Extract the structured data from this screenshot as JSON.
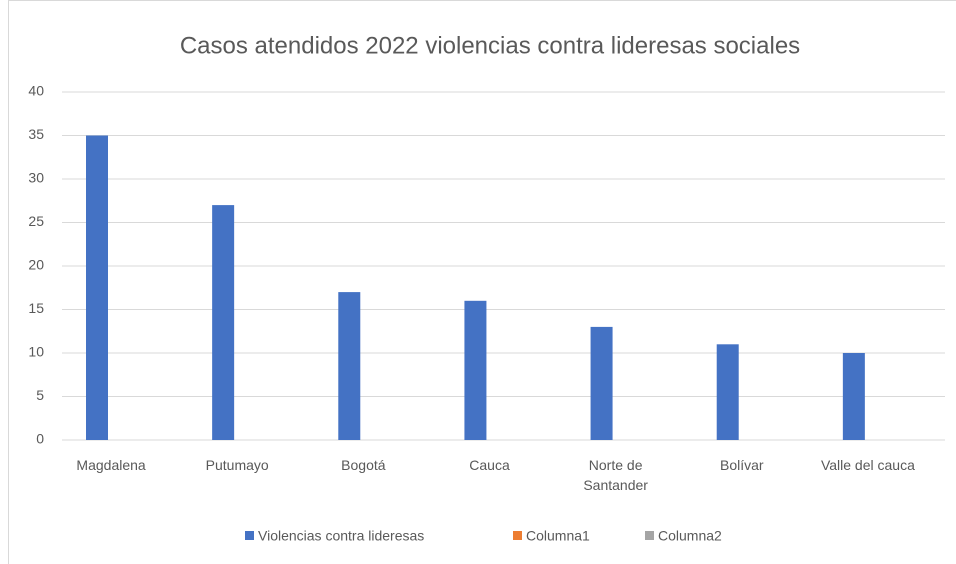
{
  "chart_data": {
    "type": "bar",
    "title": "Casos atendidos 2022 violencias contra lideresas sociales",
    "categories": [
      "Magdalena",
      "Putumayo",
      "Bogotá",
      "Cauca",
      "Norte de Santander",
      "Bolívar",
      "Valle del cauca"
    ],
    "series": [
      {
        "name": "Violencias contra lideresas",
        "color": "#4472c4",
        "values": [
          35,
          27,
          17,
          16,
          13,
          11,
          10
        ]
      },
      {
        "name": "Columna1",
        "color": "#ed7d31",
        "values": [
          null,
          null,
          null,
          null,
          null,
          null,
          null
        ]
      },
      {
        "name": "Columna2",
        "color": "#a5a5a5",
        "values": [
          null,
          null,
          null,
          null,
          null,
          null,
          null
        ]
      }
    ],
    "ylim": [
      0,
      40
    ],
    "yticks": [
      0,
      5,
      10,
      15,
      20,
      25,
      30,
      35,
      40
    ],
    "grid": true,
    "legend": "bottom"
  }
}
